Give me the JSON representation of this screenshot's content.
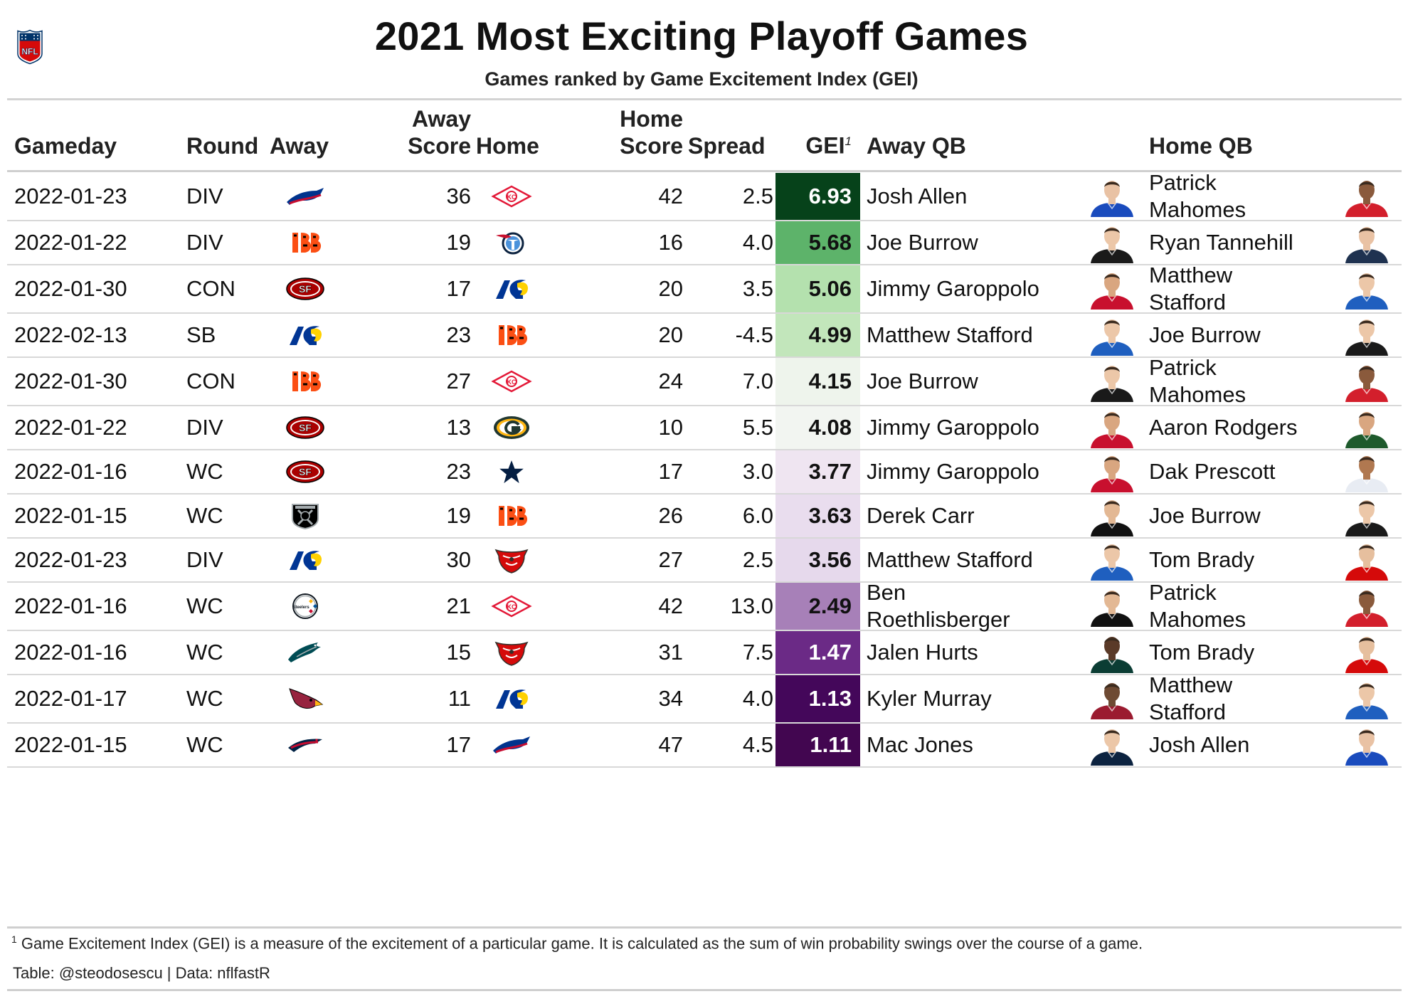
{
  "title": "2021 Most Exciting Playoff Games",
  "subtitle": "Games ranked by Game Excitement Index (GEI)",
  "logo_text": "NFL",
  "columns": {
    "gameday": "Gameday",
    "round": "Round",
    "away": "Away",
    "away_score_1": "Away",
    "away_score_2": "Score",
    "home": "Home",
    "home_score_1": "Home",
    "home_score_2": "Score",
    "spread": "Spread",
    "gei": "GEI",
    "gei_sup": "1",
    "away_qb": "Away QB",
    "home_qb": "Home QB"
  },
  "rows": [
    {
      "gameday": "2022-01-23",
      "round": "DIV",
      "away": "BUF",
      "away_score": "36",
      "home": "KC",
      "home_score": "42",
      "spread": "2.5",
      "gei": "6.93",
      "gei_bg": "#06421a",
      "gei_fg": "#ffffff",
      "away_qb": "Josh Allen",
      "home_qb": "Patrick Mahomes",
      "away_qb_lines": [
        "Josh Allen"
      ],
      "home_qb_lines": [
        "Patrick",
        "Mahomes"
      ],
      "away_jersey": "#1a4bbd",
      "home_jersey": "#d31f2c",
      "away_skin": "#e9c2a4",
      "home_skin": "#8a5a3c"
    },
    {
      "gameday": "2022-01-22",
      "round": "DIV",
      "away": "CIN",
      "away_score": "19",
      "home": "TEN",
      "home_score": "16",
      "spread": "4.0",
      "gei": "5.68",
      "gei_bg": "#5db36a",
      "gei_fg": "#111111",
      "away_qb": "Joe Burrow",
      "home_qb": "Ryan Tannehill",
      "away_qb_lines": [
        "Joe Burrow"
      ],
      "home_qb_lines": [
        "Ryan Tannehill"
      ],
      "away_jersey": "#1a1a1a",
      "home_jersey": "#1f3250",
      "away_skin": "#ecc7a8",
      "home_skin": "#e9c2a4"
    },
    {
      "gameday": "2022-01-30",
      "round": "CON",
      "away": "SF",
      "away_score": "17",
      "home": "LAR",
      "home_score": "20",
      "spread": "3.5",
      "gei": "5.06",
      "gei_bg": "#b4e1ae",
      "gei_fg": "#111111",
      "away_qb": "Jimmy Garoppolo",
      "home_qb": "Matthew Stafford",
      "away_qb_lines": [
        "Jimmy Garoppolo"
      ],
      "home_qb_lines": [
        "Matthew",
        "Stafford"
      ],
      "away_jersey": "#c8102e",
      "home_jersey": "#1f5fbf",
      "away_skin": "#d9a680",
      "home_skin": "#ecc7a8"
    },
    {
      "gameday": "2022-02-13",
      "round": "SB",
      "away": "LAR",
      "away_score": "23",
      "home": "CIN",
      "home_score": "20",
      "spread": "-4.5",
      "gei": "4.99",
      "gei_bg": "#c2e6bb",
      "gei_fg": "#111111",
      "away_qb": "Matthew Stafford",
      "home_qb": "Joe Burrow",
      "away_qb_lines": [
        "Matthew Stafford"
      ],
      "home_qb_lines": [
        "Joe Burrow"
      ],
      "away_jersey": "#1f5fbf",
      "home_jersey": "#1a1a1a",
      "away_skin": "#ecc7a8",
      "home_skin": "#ecc7a8"
    },
    {
      "gameday": "2022-01-30",
      "round": "CON",
      "away": "CIN",
      "away_score": "27",
      "home": "KC",
      "home_score": "24",
      "spread": "7.0",
      "gei": "4.15",
      "gei_bg": "#eef4ec",
      "gei_fg": "#111111",
      "away_qb": "Joe Burrow",
      "home_qb": "Patrick Mahomes",
      "away_qb_lines": [
        "Joe Burrow"
      ],
      "home_qb_lines": [
        "Patrick",
        "Mahomes"
      ],
      "away_jersey": "#1a1a1a",
      "home_jersey": "#d31f2c",
      "away_skin": "#ecc7a8",
      "home_skin": "#8a5a3c"
    },
    {
      "gameday": "2022-01-22",
      "round": "DIV",
      "away": "SF",
      "away_score": "13",
      "home": "GB",
      "home_score": "10",
      "spread": "5.5",
      "gei": "4.08",
      "gei_bg": "#f2f5f1",
      "gei_fg": "#111111",
      "away_qb": "Jimmy Garoppolo",
      "home_qb": "Aaron Rodgers",
      "away_qb_lines": [
        "Jimmy Garoppolo"
      ],
      "home_qb_lines": [
        "Aaron Rodgers"
      ],
      "away_jersey": "#c8102e",
      "home_jersey": "#1e5a2c",
      "away_skin": "#d9a680",
      "home_skin": "#d9a680"
    },
    {
      "gameday": "2022-01-16",
      "round": "WC",
      "away": "SF",
      "away_score": "23",
      "home": "DAL",
      "home_score": "17",
      "spread": "3.0",
      "gei": "3.77",
      "gei_bg": "#efe5f1",
      "gei_fg": "#111111",
      "away_qb": "Jimmy Garoppolo",
      "home_qb": "Dak Prescott",
      "away_qb_lines": [
        "Jimmy Garoppolo"
      ],
      "home_qb_lines": [
        "Dak Prescott"
      ],
      "away_jersey": "#c8102e",
      "home_jersey": "#e8ecf3",
      "away_skin": "#d9a680",
      "home_skin": "#b07850"
    },
    {
      "gameday": "2022-01-15",
      "round": "WC",
      "away": "LV",
      "away_score": "19",
      "home": "CIN",
      "home_score": "26",
      "spread": "6.0",
      "gei": "3.63",
      "gei_bg": "#e9ddee",
      "gei_fg": "#111111",
      "away_qb": "Derek Carr",
      "home_qb": "Joe Burrow",
      "away_qb_lines": [
        "Derek Carr"
      ],
      "home_qb_lines": [
        "Joe Burrow"
      ],
      "away_jersey": "#111111",
      "home_jersey": "#1a1a1a",
      "away_skin": "#e3b894",
      "home_skin": "#ecc7a8"
    },
    {
      "gameday": "2022-01-23",
      "round": "DIV",
      "away": "LAR",
      "away_score": "30",
      "home": "TB",
      "home_score": "27",
      "spread": "2.5",
      "gei": "3.56",
      "gei_bg": "#e6d9ec",
      "gei_fg": "#111111",
      "away_qb": "Matthew Stafford",
      "home_qb": "Tom Brady",
      "away_qb_lines": [
        "Matthew Stafford"
      ],
      "home_qb_lines": [
        "Tom Brady"
      ],
      "away_jersey": "#1f5fbf",
      "home_jersey": "#d50a0a",
      "away_skin": "#ecc7a8",
      "home_skin": "#e6bf9e"
    },
    {
      "gameday": "2022-01-16",
      "round": "WC",
      "away": "PIT",
      "away_score": "21",
      "home": "KC",
      "home_score": "42",
      "spread": "13.0",
      "gei": "2.49",
      "gei_bg": "#a780b8",
      "gei_fg": "#111111",
      "away_qb": "Ben Roethlisberger",
      "home_qb": "Patrick Mahomes",
      "away_qb_lines": [
        "Ben",
        "Roethlisberger"
      ],
      "home_qb_lines": [
        "Patrick",
        "Mahomes"
      ],
      "away_jersey": "#111111",
      "home_jersey": "#d31f2c",
      "away_skin": "#e3b894",
      "home_skin": "#8a5a3c"
    },
    {
      "gameday": "2022-01-16",
      "round": "WC",
      "away": "PHI",
      "away_score": "15",
      "home": "TB",
      "home_score": "31",
      "spread": "7.5",
      "gei": "1.47",
      "gei_bg": "#6b2a86",
      "gei_fg": "#ffffff",
      "away_qb": "Jalen Hurts",
      "home_qb": "Tom Brady",
      "away_qb_lines": [
        "Jalen Hurts"
      ],
      "home_qb_lines": [
        "Tom Brady"
      ],
      "away_jersey": "#0b3d34",
      "home_jersey": "#d50a0a",
      "away_skin": "#5a3a28",
      "home_skin": "#e6bf9e"
    },
    {
      "gameday": "2022-01-17",
      "round": "WC",
      "away": "ARI",
      "away_score": "11",
      "home": "LAR",
      "home_score": "34",
      "spread": "4.0",
      "gei": "1.13",
      "gei_bg": "#44075a",
      "gei_fg": "#ffffff",
      "away_qb": "Kyler Murray",
      "home_qb": "Matthew Stafford",
      "away_qb_lines": [
        "Kyler Murray"
      ],
      "home_qb_lines": [
        "Matthew",
        "Stafford"
      ],
      "away_jersey": "#9b1b30",
      "home_jersey": "#1f5fbf",
      "away_skin": "#6e4a33",
      "home_skin": "#ecc7a8"
    },
    {
      "gameday": "2022-01-15",
      "round": "WC",
      "away": "NE",
      "away_score": "17",
      "home": "BUF",
      "home_score": "47",
      "spread": "4.5",
      "gei": "1.11",
      "gei_bg": "#420650",
      "gei_fg": "#ffffff",
      "away_qb": "Mac Jones",
      "home_qb": "Josh Allen",
      "away_qb_lines": [
        "Mac Jones"
      ],
      "home_qb_lines": [
        "Josh Allen"
      ],
      "away_jersey": "#0c2340",
      "home_jersey": "#1a4bbd",
      "away_skin": "#ecc7a8",
      "home_skin": "#e9c2a4"
    }
  ],
  "footnote_sup": "1",
  "footnote": "Game Excitement Index (GEI) is a measure of the excitement of a particular game. It is calculated as the sum of win probability swings over the course of a game.",
  "credit": "Table: @steodosescu | Data: nflfastR"
}
